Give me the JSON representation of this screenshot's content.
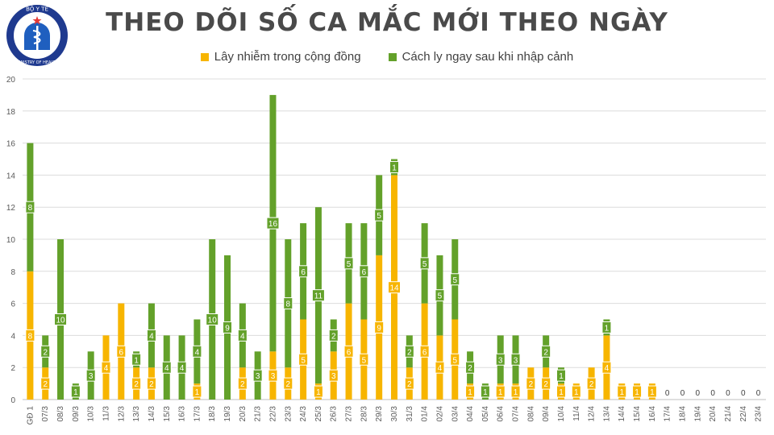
{
  "logo": {
    "text_top": "BỘ Y TẾ",
    "text_bottom": "MINISTRY OF HEALTH"
  },
  "colors": {
    "community": "#f7b500",
    "quarantine": "#63a12a",
    "grid": "#dcdcdc",
    "axis_text": "#595959"
  },
  "chart_data": {
    "type": "bar",
    "stacked": true,
    "title": "THEO DÕI SỐ CA MẮC MỚI THEO NGÀY",
    "xlabel": "",
    "ylabel": "",
    "ylim": [
      0,
      20
    ],
    "yticks": [
      "0",
      "2",
      "4",
      "6",
      "8",
      "10",
      "12",
      "14",
      "16",
      "18",
      "20"
    ],
    "grid": true,
    "legend_position": "top-center",
    "categories": [
      "GĐ 1",
      "07/3",
      "08/3",
      "09/3",
      "10/3",
      "11/3",
      "12/3",
      "13/3",
      "14/3",
      "15/3",
      "16/3",
      "17/3",
      "18/3",
      "19/3",
      "20/3",
      "21/3",
      "22/3",
      "23/3",
      "24/3",
      "25/3",
      "26/3",
      "27/3",
      "28/3",
      "29/3",
      "30/3",
      "31/3",
      "01/4",
      "02/4",
      "03/4",
      "04/4",
      "05/4",
      "06/4",
      "07/4",
      "08/4",
      "09/4",
      "10/4",
      "11/4",
      "12/4",
      "13/4",
      "14/4",
      "15/4",
      "16/4",
      "17/4",
      "18/4",
      "19/4",
      "20/4",
      "21/4",
      "22/4",
      "23/4"
    ],
    "series": [
      {
        "name": "Lây nhiễm trong cộng đồng",
        "color": "#f7b500",
        "values": [
          8,
          2,
          0,
          0,
          0,
          4,
          6,
          2,
          2,
          0,
          0,
          1,
          0,
          0,
          2,
          0,
          3,
          2,
          5,
          1,
          3,
          6,
          5,
          9,
          14,
          2,
          6,
          4,
          5,
          1,
          0,
          1,
          1,
          2,
          2,
          1,
          1,
          2,
          4,
          1,
          1,
          1,
          0,
          0,
          0,
          0,
          0,
          0,
          0
        ]
      },
      {
        "name": "Cách ly ngay sau khi nhập cảnh",
        "color": "#63a12a",
        "values": [
          8,
          2,
          10,
          1,
          3,
          0,
          0,
          1,
          4,
          4,
          4,
          4,
          10,
          9,
          4,
          3,
          16,
          8,
          6,
          11,
          2,
          5,
          6,
          5,
          1,
          2,
          5,
          5,
          5,
          2,
          1,
          3,
          3,
          0,
          2,
          1,
          0,
          0,
          1,
          0,
          0,
          0,
          0,
          0,
          0,
          0,
          0,
          0,
          0
        ]
      }
    ],
    "zero_labels": [
      "0",
      "0",
      "0",
      "0",
      "0",
      "0",
      "0"
    ]
  }
}
